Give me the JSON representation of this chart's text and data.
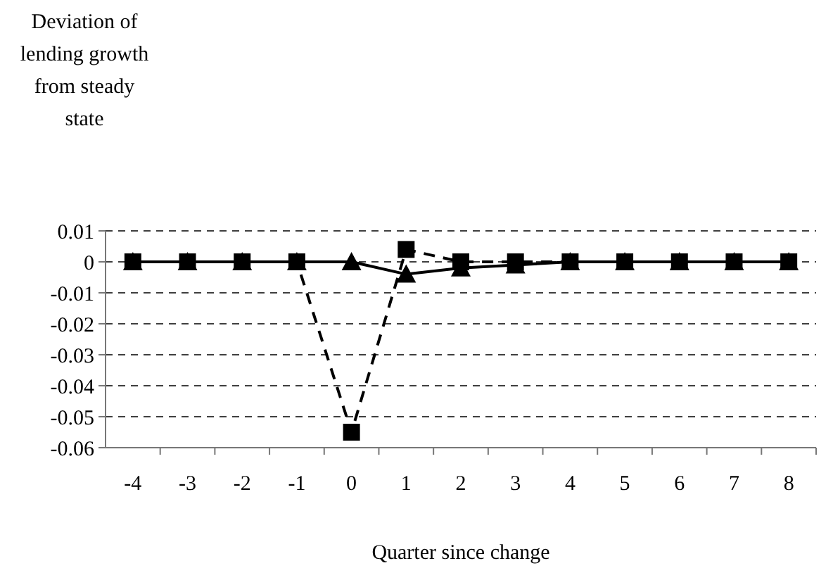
{
  "chart_data": {
    "type": "line",
    "ylabel": "Deviation of lending growth from steady state",
    "xlabel": "Quarter since change",
    "categories": [
      "-4",
      "-3",
      "-2",
      "-1",
      "0",
      "1",
      "2",
      "3",
      "4",
      "5",
      "6",
      "7",
      "8"
    ],
    "series": [
      {
        "color": "#000000",
        "marker": "square",
        "line_style": "dashed",
        "values": [
          0,
          0,
          0,
          0,
          -0.055,
          0.004,
          0,
          0,
          0,
          0,
          0,
          0,
          0
        ]
      },
      {
        "color": "#000000",
        "marker": "triangle",
        "line_style": "solid",
        "values": [
          0,
          0,
          0,
          0,
          0,
          -0.004,
          -0.002,
          -0.001,
          0,
          0,
          0,
          0,
          0
        ]
      }
    ],
    "ylim": [
      -0.06,
      0.01
    ],
    "yticks": [
      {
        "value": 0.01,
        "label": "0.01"
      },
      0,
      {
        "value": -0.01,
        "label": "-0.01"
      },
      {
        "value": -0.02,
        "label": "-0.02"
      },
      {
        "value": -0.03,
        "label": "-0.03"
      },
      {
        "value": -0.04,
        "label": "-0.04"
      },
      {
        "value": -0.05,
        "label": "-0.05"
      },
      {
        "value": -0.06,
        "label": "-0.06"
      }
    ],
    "grid": "y",
    "legend": false
  }
}
